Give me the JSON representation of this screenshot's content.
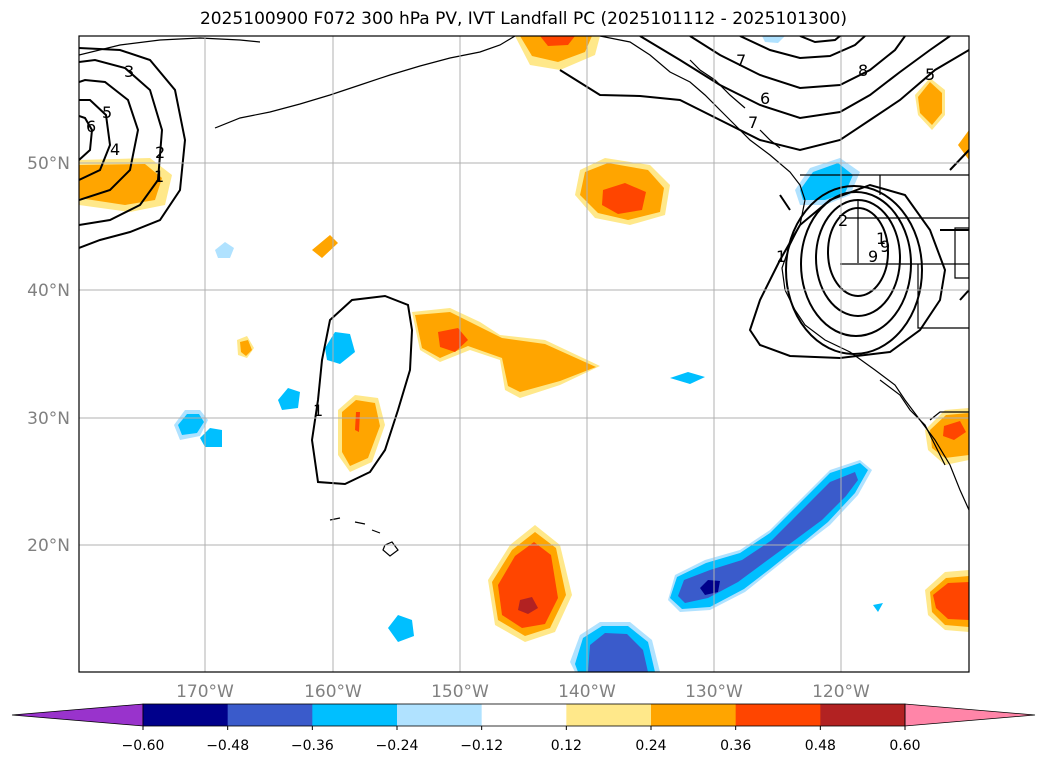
{
  "title": "2025100900 F072 300 hPa PV, IVT Landfall PC (2025101112 - 2025101300)",
  "map": {
    "lon_range": [
      -180,
      -110
    ],
    "lat_range": [
      10,
      60
    ],
    "lat_labels": [
      "20°N",
      "30°N",
      "40°N",
      "50°N"
    ],
    "lon_labels": [
      "170°W",
      "160°W",
      "150°W",
      "140°W",
      "130°W",
      "120°W"
    ],
    "pv_contour_labels": [
      "1",
      "2",
      "3",
      "4",
      "5",
      "6",
      "7",
      "8",
      "9",
      "5",
      "6",
      "7",
      "2",
      "1",
      "9",
      "1",
      "1"
    ]
  },
  "colorbar": {
    "ticks": [
      "−0.60",
      "−0.48",
      "−0.36",
      "−0.24",
      "−0.12",
      "0.12",
      "0.24",
      "0.36",
      "0.48",
      "0.60"
    ],
    "colors": [
      "#9933cc",
      "#00008b",
      "#3a5bcb",
      "#00bfff",
      "#b0e2ff",
      "#ffffff",
      "#ffe88a",
      "#ffa500",
      "#ff4500",
      "#b22222",
      "#ff85a8"
    ]
  }
}
